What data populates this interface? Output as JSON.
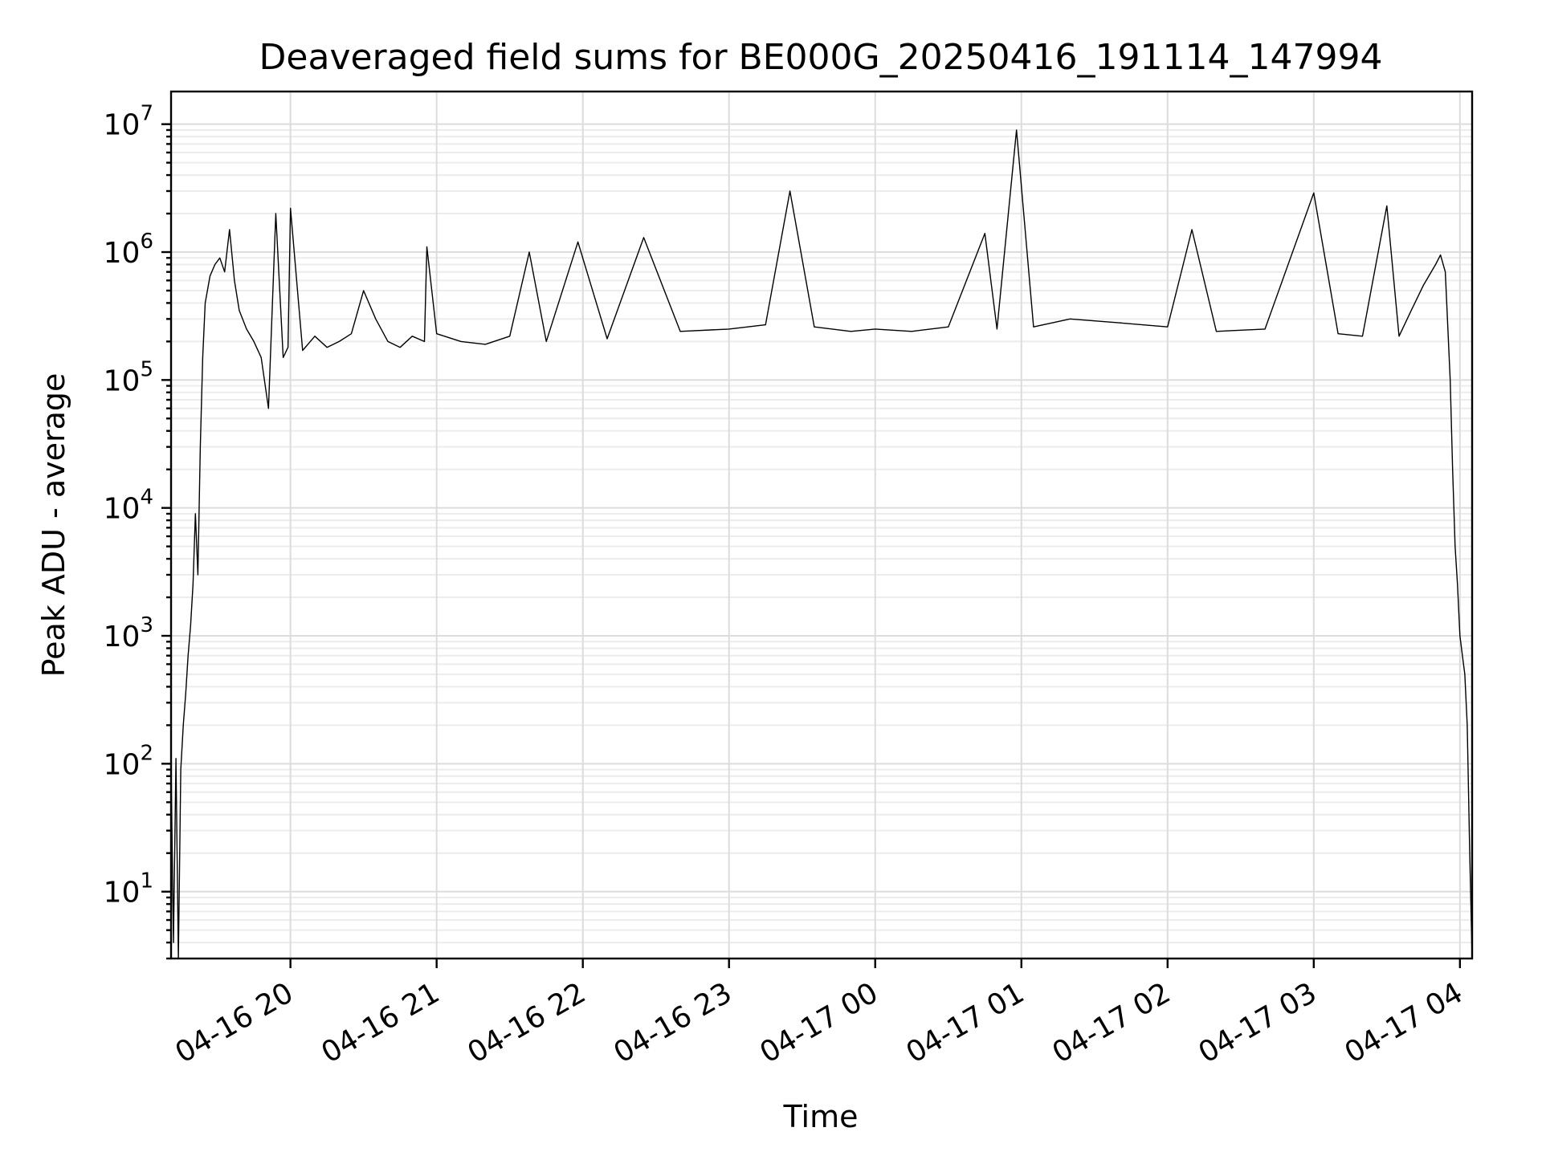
{
  "chart_data": {
    "type": "line",
    "title": "Deaveraged field sums for BE000G_20250416_191114_147994",
    "xlabel": "Time",
    "ylabel": "Peak ADU - average",
    "yscale": "log",
    "ylim": [
      3,
      18000000
    ],
    "xlim": [
      "2025-04-16 19:11",
      "2025-04-17 04:05"
    ],
    "grid": true,
    "x_ticks": [
      {
        "value": "2025-04-16 20:00",
        "label": "04-16 20"
      },
      {
        "value": "2025-04-16 21:00",
        "label": "04-16 21"
      },
      {
        "value": "2025-04-16 22:00",
        "label": "04-16 22"
      },
      {
        "value": "2025-04-16 23:00",
        "label": "04-16 23"
      },
      {
        "value": "2025-04-17 00:00",
        "label": "04-17 00"
      },
      {
        "value": "2025-04-17 01:00",
        "label": "04-17 01"
      },
      {
        "value": "2025-04-17 02:00",
        "label": "04-17 02"
      },
      {
        "value": "2025-04-17 03:00",
        "label": "04-17 03"
      },
      {
        "value": "2025-04-17 04:00",
        "label": "04-17 04"
      }
    ],
    "y_ticks": [
      {
        "value": 10,
        "base": "10",
        "exp": "1"
      },
      {
        "value": 100,
        "base": "10",
        "exp": "2"
      },
      {
        "value": 1000,
        "base": "10",
        "exp": "3"
      },
      {
        "value": 10000,
        "base": "10",
        "exp": "4"
      },
      {
        "value": 100000,
        "base": "10",
        "exp": "5"
      },
      {
        "value": 1000000,
        "base": "10",
        "exp": "6"
      },
      {
        "value": 10000000,
        "base": "10",
        "exp": "7"
      }
    ],
    "series": [
      {
        "color": "#000000",
        "points": [
          [
            "2025-04-16 19:11",
            100
          ],
          [
            "2025-04-16 19:12",
            4
          ],
          [
            "2025-04-16 19:13",
            110
          ],
          [
            "2025-04-16 19:14",
            3
          ],
          [
            "2025-04-16 19:15",
            90
          ],
          [
            "2025-04-16 19:16",
            200
          ],
          [
            "2025-04-16 19:17",
            350
          ],
          [
            "2025-04-16 19:18",
            700
          ],
          [
            "2025-04-16 19:19",
            1200
          ],
          [
            "2025-04-16 19:20",
            2500
          ],
          [
            "2025-04-16 19:21",
            9000
          ],
          [
            "2025-04-16 19:22",
            3000
          ],
          [
            "2025-04-16 19:23",
            30000
          ],
          [
            "2025-04-16 19:24",
            150000
          ],
          [
            "2025-04-16 19:25",
            400000
          ],
          [
            "2025-04-16 19:27",
            650000
          ],
          [
            "2025-04-16 19:29",
            800000
          ],
          [
            "2025-04-16 19:31",
            900000
          ],
          [
            "2025-04-16 19:33",
            700000
          ],
          [
            "2025-04-16 19:35",
            1500000
          ],
          [
            "2025-04-16 19:37",
            600000
          ],
          [
            "2025-04-16 19:39",
            350000
          ],
          [
            "2025-04-16 19:42",
            250000
          ],
          [
            "2025-04-16 19:45",
            200000
          ],
          [
            "2025-04-16 19:48",
            150000
          ],
          [
            "2025-04-16 19:51",
            60000
          ],
          [
            "2025-04-16 19:54",
            2000000
          ],
          [
            "2025-04-16 19:57",
            150000
          ],
          [
            "2025-04-16 19:59",
            180000
          ],
          [
            "2025-04-16 20:00",
            2200000
          ],
          [
            "2025-04-16 20:05",
            170000
          ],
          [
            "2025-04-16 20:10",
            220000
          ],
          [
            "2025-04-16 20:15",
            180000
          ],
          [
            "2025-04-16 20:20",
            200000
          ],
          [
            "2025-04-16 20:25",
            230000
          ],
          [
            "2025-04-16 20:30",
            500000
          ],
          [
            "2025-04-16 20:35",
            300000
          ],
          [
            "2025-04-16 20:40",
            200000
          ],
          [
            "2025-04-16 20:45",
            180000
          ],
          [
            "2025-04-16 20:50",
            220000
          ],
          [
            "2025-04-16 20:55",
            200000
          ],
          [
            "2025-04-16 20:56",
            1100000
          ],
          [
            "2025-04-16 21:00",
            230000
          ],
          [
            "2025-04-16 21:10",
            200000
          ],
          [
            "2025-04-16 21:20",
            190000
          ],
          [
            "2025-04-16 21:30",
            220000
          ],
          [
            "2025-04-16 21:38",
            1000000
          ],
          [
            "2025-04-16 21:45",
            200000
          ],
          [
            "2025-04-16 21:58",
            1200000
          ],
          [
            "2025-04-16 22:10",
            210000
          ],
          [
            "2025-04-16 22:25",
            1300000
          ],
          [
            "2025-04-16 22:40",
            240000
          ],
          [
            "2025-04-16 23:00",
            250000
          ],
          [
            "2025-04-16 23:15",
            270000
          ],
          [
            "2025-04-16 23:25",
            3000000
          ],
          [
            "2025-04-16 23:35",
            260000
          ],
          [
            "2025-04-16 23:50",
            240000
          ],
          [
            "2025-04-17 00:00",
            250000
          ],
          [
            "2025-04-17 00:15",
            240000
          ],
          [
            "2025-04-17 00:30",
            260000
          ],
          [
            "2025-04-17 00:45",
            1400000
          ],
          [
            "2025-04-17 00:50",
            250000
          ],
          [
            "2025-04-17 00:58",
            9000000
          ],
          [
            "2025-04-17 01:05",
            260000
          ],
          [
            "2025-04-17 01:20",
            300000
          ],
          [
            "2025-04-17 01:40",
            280000
          ],
          [
            "2025-04-17 02:00",
            260000
          ],
          [
            "2025-04-17 02:10",
            1500000
          ],
          [
            "2025-04-17 02:20",
            240000
          ],
          [
            "2025-04-17 02:40",
            250000
          ],
          [
            "2025-04-17 03:00",
            2900000
          ],
          [
            "2025-04-17 03:10",
            230000
          ],
          [
            "2025-04-17 03:20",
            220000
          ],
          [
            "2025-04-17 03:30",
            2300000
          ],
          [
            "2025-04-17 03:35",
            220000
          ],
          [
            "2025-04-17 03:40",
            350000
          ],
          [
            "2025-04-17 03:45",
            550000
          ],
          [
            "2025-04-17 03:50",
            800000
          ],
          [
            "2025-04-17 03:52",
            950000
          ],
          [
            "2025-04-17 03:54",
            700000
          ],
          [
            "2025-04-17 03:56",
            100000
          ],
          [
            "2025-04-17 03:57",
            20000
          ],
          [
            "2025-04-17 03:58",
            5000
          ],
          [
            "2025-04-17 03:59",
            2500
          ],
          [
            "2025-04-17 04:00",
            1000
          ],
          [
            "2025-04-17 04:01",
            700
          ],
          [
            "2025-04-17 04:02",
            500
          ],
          [
            "2025-04-17 04:03",
            200
          ],
          [
            "2025-04-17 04:04",
            20
          ],
          [
            "2025-04-17 04:05",
            3
          ]
        ]
      }
    ]
  }
}
